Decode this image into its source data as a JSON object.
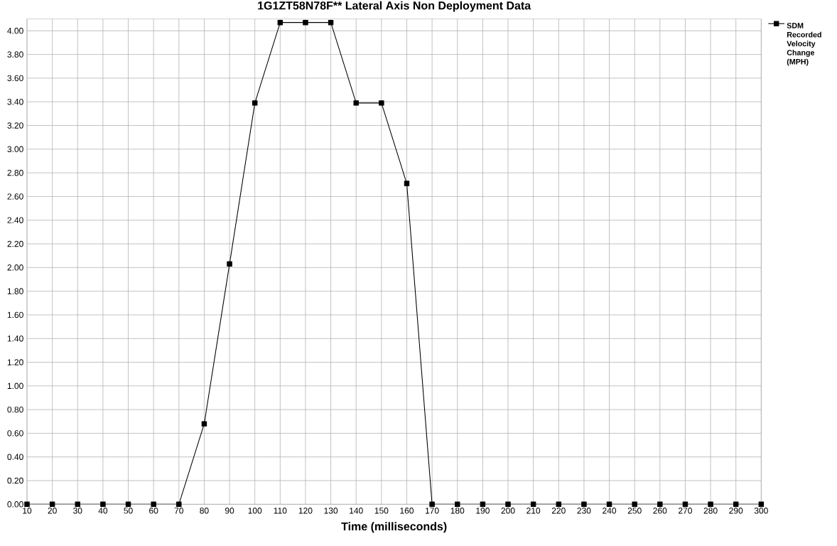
{
  "chart_data": {
    "type": "line",
    "title": "1G1ZT58N78F******  Lateral Axis Non Deployment Data",
    "xlabel": "Time (milliseconds)",
    "categories": [
      "10",
      "20",
      "30",
      "40",
      "50",
      "60",
      "70",
      "80",
      "90",
      "100",
      "110",
      "120",
      "130",
      "140",
      "150",
      "160",
      "170",
      "180",
      "190",
      "200",
      "210",
      "220",
      "230",
      "240",
      "250",
      "260",
      "270",
      "280",
      "290",
      "300"
    ],
    "series": [
      {
        "name": "SDM Recorded Velocity Change (MPH)",
        "color": "#000000",
        "values": [
          0,
          0,
          0,
          0,
          0,
          0,
          0,
          0.68,
          2.03,
          3.39,
          4.07,
          4.07,
          4.07,
          3.39,
          3.39,
          2.71,
          0,
          0,
          0,
          0,
          0,
          0,
          0,
          0,
          0,
          0,
          0,
          0,
          0,
          0
        ]
      }
    ],
    "ylim": [
      0,
      4.1
    ],
    "yticks": [
      {
        "value": 0,
        "label": "0.00"
      },
      {
        "value": 0.2,
        "label": "0.20"
      },
      {
        "value": 0.4,
        "label": "0.40"
      },
      {
        "value": 0.6,
        "label": "0.60"
      },
      {
        "value": 0.8,
        "label": "0.80"
      },
      {
        "value": 1.0,
        "label": "1.00"
      },
      {
        "value": 1.2,
        "label": "1.20"
      },
      {
        "value": 1.4,
        "label": "1.40"
      },
      {
        "value": 1.6,
        "label": "1.60"
      },
      {
        "value": 1.8,
        "label": "1.80"
      },
      {
        "value": 2.0,
        "label": "2.00"
      },
      {
        "value": 2.2,
        "label": "2.20"
      },
      {
        "value": 2.4,
        "label": "2.40"
      },
      {
        "value": 2.6,
        "label": "2.60"
      },
      {
        "value": 2.8,
        "label": "2.80"
      },
      {
        "value": 3.0,
        "label": "3.00"
      },
      {
        "value": 3.2,
        "label": "3.20"
      },
      {
        "value": 3.4,
        "label": "3.40"
      },
      {
        "value": 3.6,
        "label": "3.60"
      },
      {
        "value": 3.8,
        "label": "3.80"
      },
      {
        "value": 4.0,
        "label": "4.00"
      }
    ],
    "grid": true,
    "legend": "top right",
    "marker": "square",
    "line_style": "solid"
  }
}
